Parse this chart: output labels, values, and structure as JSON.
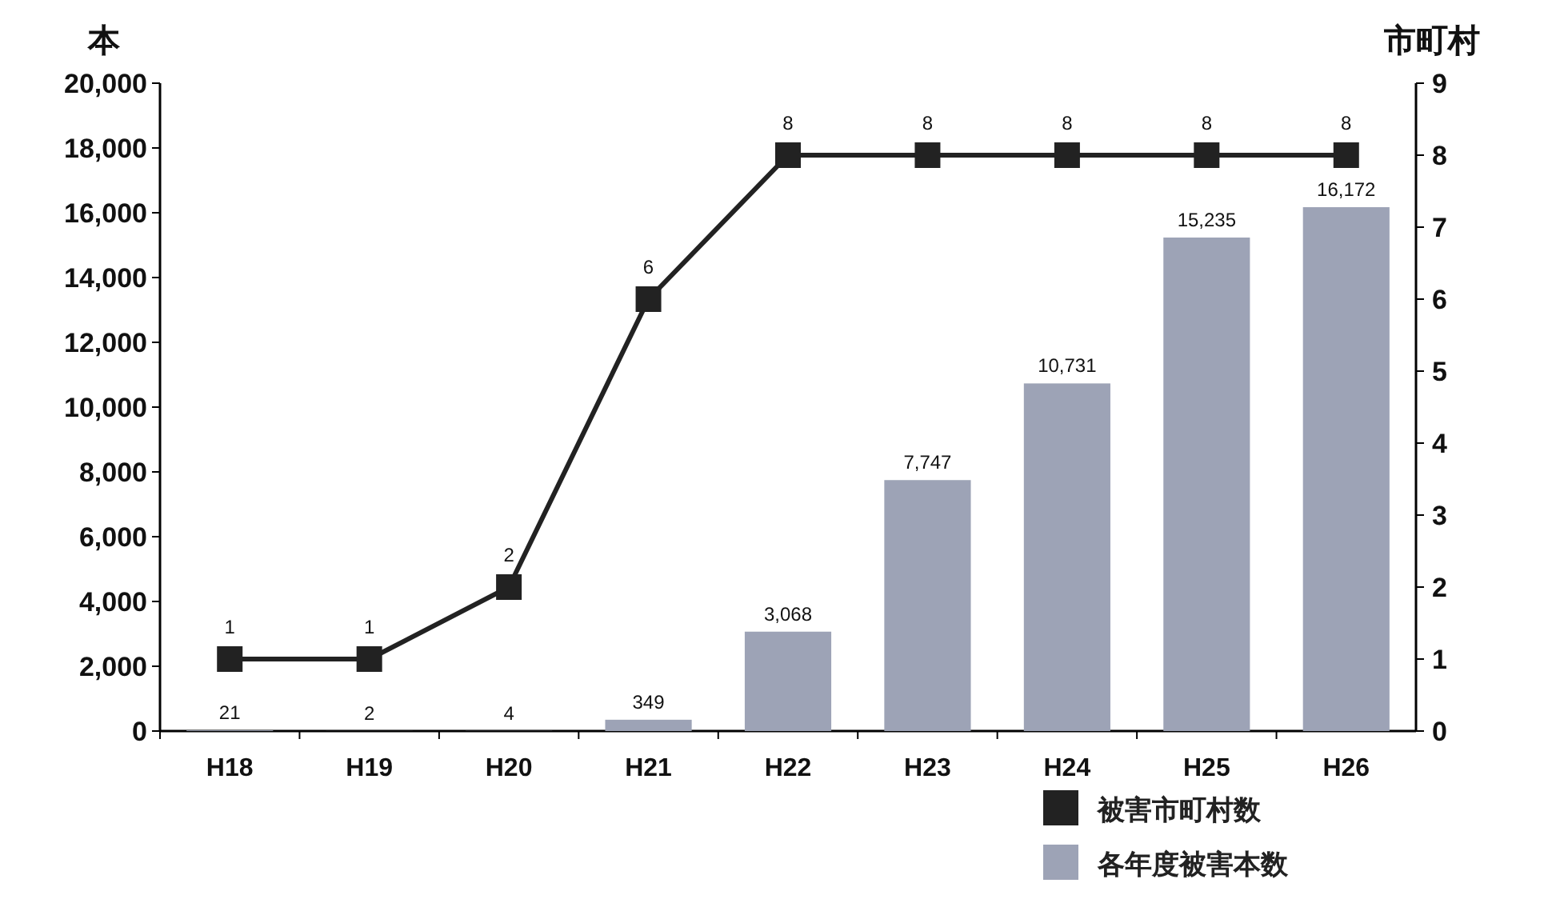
{
  "chart_data": {
    "type": "bar",
    "ylabel": "本",
    "y2label": "市町村",
    "categories": [
      "H18",
      "H19",
      "H20",
      "H21",
      "H22",
      "H23",
      "H24",
      "H25",
      "H26"
    ],
    "series": [
      {
        "name": "各年度被害本数",
        "color": "#9da3b6",
        "values": [
          21,
          2,
          4,
          349,
          3068,
          7747,
          10731,
          15235,
          16172
        ],
        "value_labels": [
          "21",
          "2",
          "4",
          "349",
          "3,068",
          "7,747",
          "10,731",
          "15,235",
          "16,172"
        ]
      },
      {
        "name": "被害市町村数",
        "type": "line",
        "axis": "y2",
        "color": "#222222",
        "values": [
          1,
          1,
          2,
          6,
          8,
          8,
          8,
          8,
          8
        ],
        "value_labels": [
          "1",
          "1",
          "2",
          "6",
          "8",
          "8",
          "8",
          "8",
          "8"
        ]
      }
    ],
    "ylim": [
      0,
      20000
    ],
    "yticks": [
      0,
      {
        "value": 2000,
        "label": "2,000"
      },
      {
        "value": 4000,
        "label": "4,000"
      },
      {
        "value": 6000,
        "label": "6,000"
      },
      {
        "value": 8000,
        "label": "8,000"
      },
      {
        "value": 10000,
        "label": "10,000"
      },
      {
        "value": 12000,
        "label": "12,000"
      },
      {
        "value": 14000,
        "label": "14,000"
      },
      {
        "value": 16000,
        "label": "16,000"
      },
      {
        "value": 18000,
        "label": "18,000"
      },
      {
        "value": 20000,
        "label": "20,000"
      }
    ],
    "y2lim": [
      0,
      9
    ],
    "y2ticks": [
      0,
      1,
      2,
      3,
      4,
      5,
      6,
      7,
      8,
      9
    ],
    "marker": "square",
    "legend": "bottom right"
  }
}
